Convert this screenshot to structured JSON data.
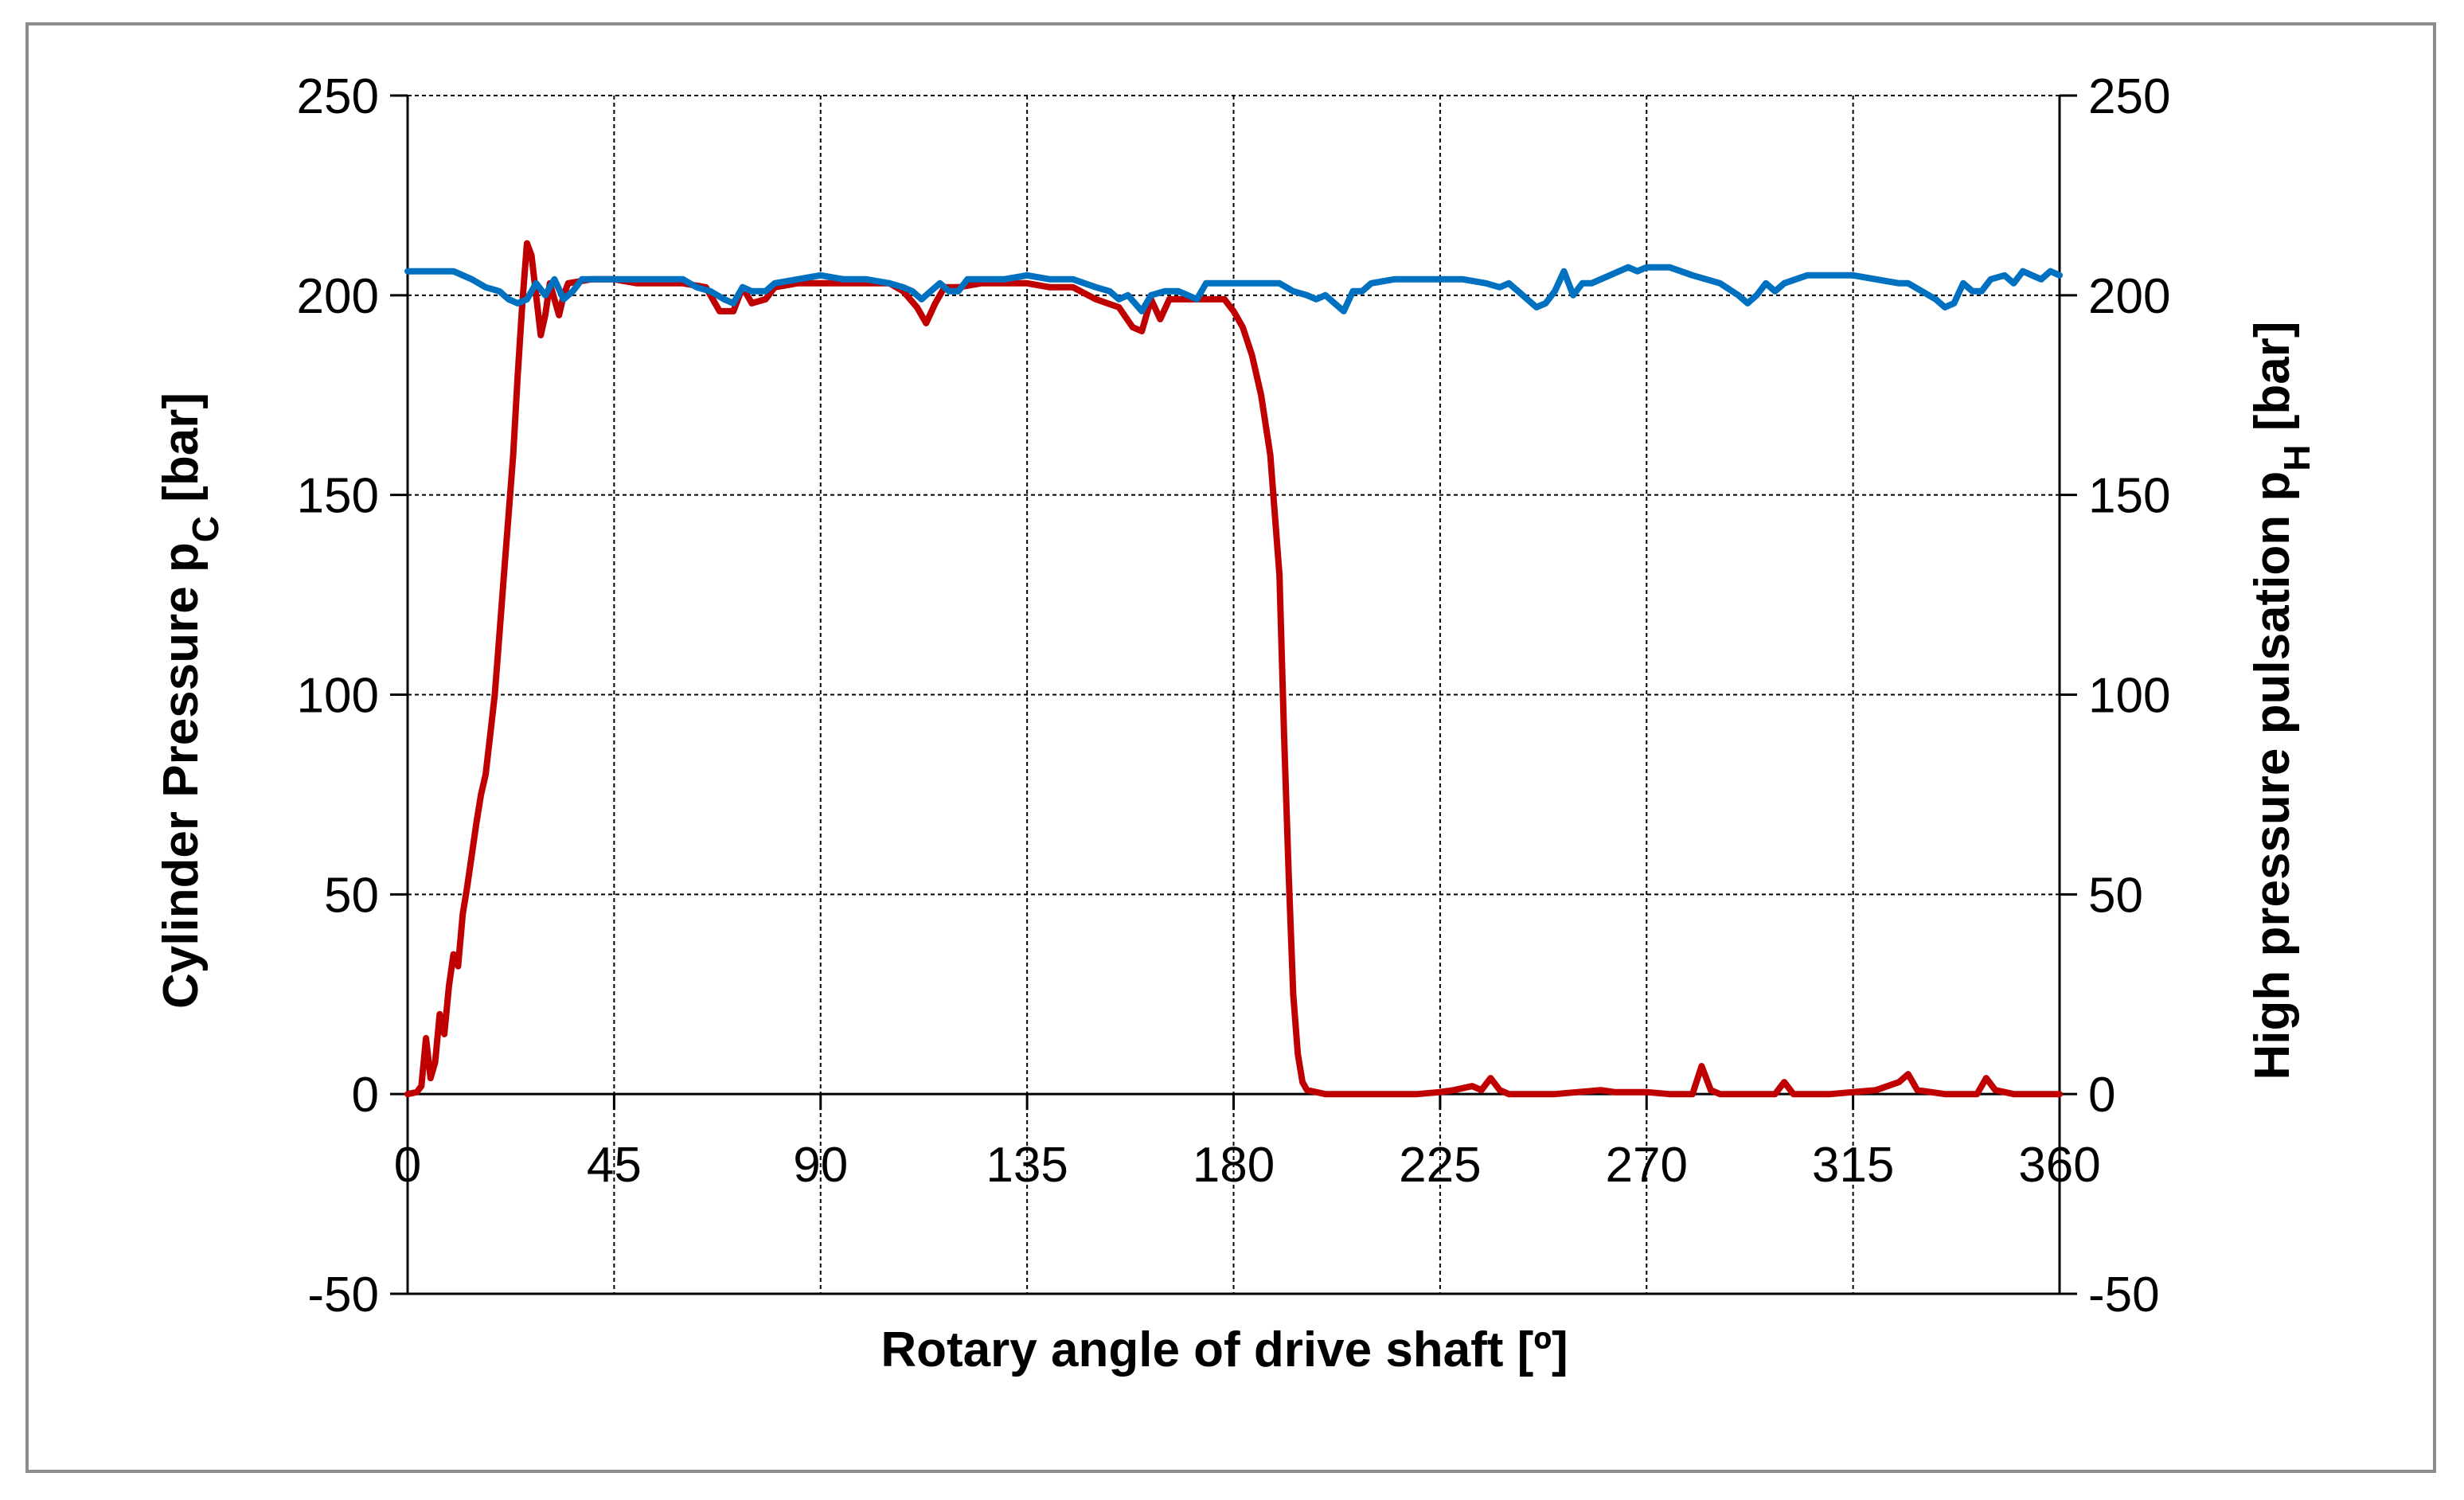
{
  "chart_data": {
    "type": "line",
    "title": "",
    "xlabel": "Rotary angle of drive shaft [º]",
    "ylabel_left": {
      "main": "Cylinder Pressure p",
      "sub": "C",
      "tail": " [bar]"
    },
    "ylabel_right": {
      "main": "High pressure pulsation p",
      "sub": "H",
      "tail": " [bar]"
    },
    "xlim": [
      0,
      360
    ],
    "ylim_left": [
      -50,
      250
    ],
    "ylim_right": [
      -50,
      250
    ],
    "x_ticks": [
      0,
      45,
      90,
      135,
      180,
      225,
      270,
      315,
      360
    ],
    "y_ticks": [
      -50,
      0,
      50,
      100,
      150,
      200,
      250
    ],
    "grid": true,
    "legend": "none",
    "series": [
      {
        "axis": "left",
        "color": "#c00000",
        "points": [
          [
            0,
            0
          ],
          [
            2,
            0.5
          ],
          [
            3,
            2
          ],
          [
            4,
            14
          ],
          [
            5,
            4
          ],
          [
            6,
            8
          ],
          [
            7,
            20
          ],
          [
            8,
            15
          ],
          [
            9,
            27
          ],
          [
            10,
            35
          ],
          [
            11,
            32
          ],
          [
            12,
            45
          ],
          [
            13,
            52
          ],
          [
            14,
            60
          ],
          [
            15,
            68
          ],
          [
            16,
            75
          ],
          [
            17,
            80
          ],
          [
            18,
            90
          ],
          [
            19,
            100
          ],
          [
            20,
            115
          ],
          [
            21,
            130
          ],
          [
            22,
            145
          ],
          [
            23,
            160
          ],
          [
            24,
            180
          ],
          [
            25,
            198
          ],
          [
            26,
            213
          ],
          [
            27,
            210
          ],
          [
            28,
            200
          ],
          [
            29,
            190
          ],
          [
            30,
            195
          ],
          [
            31,
            203
          ],
          [
            32,
            199
          ],
          [
            33,
            195
          ],
          [
            34,
            200
          ],
          [
            35,
            203
          ],
          [
            40,
            204
          ],
          [
            45,
            204
          ],
          [
            50,
            203
          ],
          [
            55,
            203
          ],
          [
            60,
            203
          ],
          [
            65,
            202
          ],
          [
            68,
            196
          ],
          [
            71,
            196
          ],
          [
            73,
            202
          ],
          [
            75,
            198
          ],
          [
            78,
            199
          ],
          [
            80,
            202
          ],
          [
            85,
            203
          ],
          [
            90,
            203
          ],
          [
            95,
            203
          ],
          [
            100,
            203
          ],
          [
            105,
            203
          ],
          [
            108,
            201
          ],
          [
            111,
            197
          ],
          [
            113,
            193
          ],
          [
            115,
            198
          ],
          [
            117,
            202
          ],
          [
            120,
            202
          ],
          [
            125,
            203
          ],
          [
            130,
            203
          ],
          [
            135,
            203
          ],
          [
            140,
            202
          ],
          [
            145,
            202
          ],
          [
            150,
            199
          ],
          [
            155,
            197
          ],
          [
            158,
            192
          ],
          [
            160,
            191
          ],
          [
            162,
            199
          ],
          [
            164,
            194
          ],
          [
            166,
            199
          ],
          [
            168,
            199
          ],
          [
            170,
            199
          ],
          [
            175,
            199
          ],
          [
            178,
            199
          ],
          [
            180,
            196
          ],
          [
            182,
            192
          ],
          [
            184,
            185
          ],
          [
            186,
            175
          ],
          [
            188,
            160
          ],
          [
            190,
            130
          ],
          [
            191,
            90
          ],
          [
            192,
            55
          ],
          [
            193,
            25
          ],
          [
            194,
            10
          ],
          [
            195,
            3
          ],
          [
            196,
            1
          ],
          [
            200,
            0
          ],
          [
            210,
            0
          ],
          [
            220,
            0
          ],
          [
            225,
            0.5
          ],
          [
            228,
            1
          ],
          [
            232,
            2
          ],
          [
            234,
            1
          ],
          [
            236,
            4
          ],
          [
            238,
            1
          ],
          [
            240,
            0
          ],
          [
            250,
            0
          ],
          [
            260,
            1
          ],
          [
            263,
            0.5
          ],
          [
            270,
            0.5
          ],
          [
            275,
            0
          ],
          [
            280,
            0
          ],
          [
            282,
            7
          ],
          [
            284,
            1
          ],
          [
            286,
            0
          ],
          [
            295,
            0
          ],
          [
            298,
            0
          ],
          [
            300,
            3
          ],
          [
            302,
            0
          ],
          [
            310,
            0
          ],
          [
            320,
            1
          ],
          [
            325,
            3
          ],
          [
            327,
            5
          ],
          [
            329,
            1
          ],
          [
            335,
            0
          ],
          [
            342,
            0
          ],
          [
            344,
            4
          ],
          [
            346,
            1
          ],
          [
            350,
            0
          ],
          [
            360,
            0
          ]
        ]
      },
      {
        "axis": "right",
        "color": "#0070c0",
        "points": [
          [
            0,
            206
          ],
          [
            5,
            206
          ],
          [
            10,
            206
          ],
          [
            14,
            204
          ],
          [
            17,
            202
          ],
          [
            20,
            201
          ],
          [
            22,
            199
          ],
          [
            24,
            198
          ],
          [
            26,
            199
          ],
          [
            28,
            203
          ],
          [
            30,
            200
          ],
          [
            32,
            204
          ],
          [
            34,
            199
          ],
          [
            36,
            201
          ],
          [
            38,
            204
          ],
          [
            45,
            204
          ],
          [
            50,
            204
          ],
          [
            55,
            204
          ],
          [
            60,
            204
          ],
          [
            63,
            202
          ],
          [
            66,
            201
          ],
          [
            69,
            199
          ],
          [
            71,
            198
          ],
          [
            73,
            202
          ],
          [
            75,
            201
          ],
          [
            78,
            201
          ],
          [
            80,
            203
          ],
          [
            85,
            204
          ],
          [
            90,
            205
          ],
          [
            95,
            204
          ],
          [
            100,
            204
          ],
          [
            105,
            203
          ],
          [
            108,
            202
          ],
          [
            110,
            201
          ],
          [
            112,
            199
          ],
          [
            114,
            201
          ],
          [
            116,
            203
          ],
          [
            118,
            201
          ],
          [
            120,
            201
          ],
          [
            122,
            204
          ],
          [
            130,
            204
          ],
          [
            135,
            205
          ],
          [
            140,
            204
          ],
          [
            145,
            204
          ],
          [
            150,
            202
          ],
          [
            153,
            201
          ],
          [
            155,
            199
          ],
          [
            157,
            200
          ],
          [
            160,
            196
          ],
          [
            162,
            200
          ],
          [
            165,
            201
          ],
          [
            168,
            201
          ],
          [
            170,
            200
          ],
          [
            172,
            199
          ],
          [
            174,
            203
          ],
          [
            178,
            203
          ],
          [
            185,
            203
          ],
          [
            190,
            203
          ],
          [
            193,
            201
          ],
          [
            196,
            200
          ],
          [
            198,
            199
          ],
          [
            200,
            200
          ],
          [
            202,
            198
          ],
          [
            204,
            196
          ],
          [
            206,
            201
          ],
          [
            208,
            201
          ],
          [
            210,
            203
          ],
          [
            215,
            204
          ],
          [
            220,
            204
          ],
          [
            225,
            204
          ],
          [
            230,
            204
          ],
          [
            235,
            203
          ],
          [
            238,
            202
          ],
          [
            240,
            203
          ],
          [
            242,
            201
          ],
          [
            244,
            199
          ],
          [
            246,
            197
          ],
          [
            248,
            198
          ],
          [
            250,
            201
          ],
          [
            252,
            206
          ],
          [
            254,
            200
          ],
          [
            256,
            203
          ],
          [
            258,
            203
          ],
          [
            260,
            204
          ],
          [
            262,
            205
          ],
          [
            264,
            206
          ],
          [
            266,
            207
          ],
          [
            268,
            206
          ],
          [
            270,
            207
          ],
          [
            275,
            207
          ],
          [
            280,
            205
          ],
          [
            283,
            204
          ],
          [
            286,
            203
          ],
          [
            290,
            200
          ],
          [
            292,
            198
          ],
          [
            294,
            200
          ],
          [
            296,
            203
          ],
          [
            298,
            201
          ],
          [
            300,
            203
          ],
          [
            305,
            205
          ],
          [
            310,
            205
          ],
          [
            315,
            205
          ],
          [
            320,
            204
          ],
          [
            325,
            203
          ],
          [
            327,
            203
          ],
          [
            330,
            201
          ],
          [
            333,
            199
          ],
          [
            335,
            197
          ],
          [
            337,
            198
          ],
          [
            339,
            203
          ],
          [
            341,
            201
          ],
          [
            343,
            201
          ],
          [
            345,
            204
          ],
          [
            348,
            205
          ],
          [
            350,
            203
          ],
          [
            352,
            206
          ],
          [
            354,
            205
          ],
          [
            356,
            204
          ],
          [
            358,
            206
          ],
          [
            360,
            205
          ]
        ]
      }
    ]
  }
}
